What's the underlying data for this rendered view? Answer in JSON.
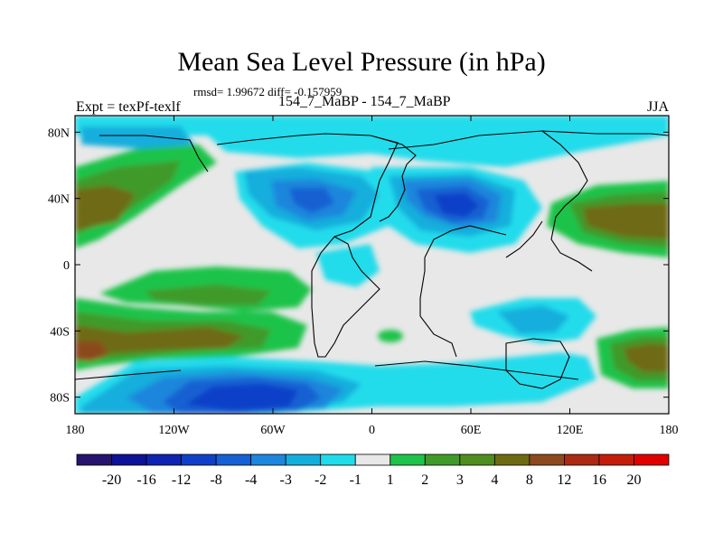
{
  "chart_data": {
    "type": "heatmap",
    "title": "Mean Sea Level Pressure (in hPa)",
    "stats_line": "rmsd= 1.99672 diff= -0.157959",
    "left_label": "Expt = texPf-texlf",
    "center_label": "154_7_MaBP - 154_7_MaBP",
    "right_label": "JJA",
    "x_ticks": [
      "180",
      "120W",
      "60W",
      "0",
      "60E",
      "120E",
      "180"
    ],
    "x_values": [
      -180,
      -120,
      -60,
      0,
      60,
      120,
      180
    ],
    "y_ticks": [
      "80N",
      "40N",
      "0",
      "40S",
      "80S"
    ],
    "y_values": [
      80,
      40,
      0,
      -40,
      -80
    ],
    "xlim": [
      -180,
      180
    ],
    "ylim": [
      -90,
      90
    ],
    "colorbar_labels": [
      "-20",
      "-16",
      "-12",
      "-8",
      "-4",
      "-3",
      "-2",
      "-1",
      "1",
      "2",
      "3",
      "4",
      "8",
      "12",
      "16",
      "20"
    ],
    "colorbar_colors": [
      "#26146e",
      "#0d1296",
      "#0f24b0",
      "#1140c8",
      "#1560d2",
      "#1e86dc",
      "#14aedc",
      "#20dceb",
      "#e8e8e8",
      "#1ec34a",
      "#3f9a2a",
      "#4f8e1e",
      "#6e6a12",
      "#8c4a1e",
      "#ab2a14",
      "#c41e0a",
      "#e00000"
    ],
    "regions": [
      {
        "name": "north-pacific-positive",
        "lon": -165,
        "lat": 40,
        "level": 11
      },
      {
        "name": "north-america-negative",
        "lon": -50,
        "lat": 40,
        "level": 5
      },
      {
        "name": "central-asia-negative",
        "lon": 60,
        "lat": 35,
        "level": 3
      },
      {
        "name": "northwest-pacific-positive",
        "lon": 150,
        "lat": 35,
        "level": 12
      },
      {
        "name": "south-pacific-positive",
        "lon": -120,
        "lat": -30,
        "level": 11
      },
      {
        "name": "south-atlantic-positive",
        "lon": -175,
        "lat": -45,
        "level": 12
      },
      {
        "name": "southeast-indian-positive",
        "lon": 170,
        "lat": -50,
        "level": 12
      },
      {
        "name": "southern-ocean-negative",
        "lon": -60,
        "lat": -75,
        "level": 3
      }
    ]
  }
}
